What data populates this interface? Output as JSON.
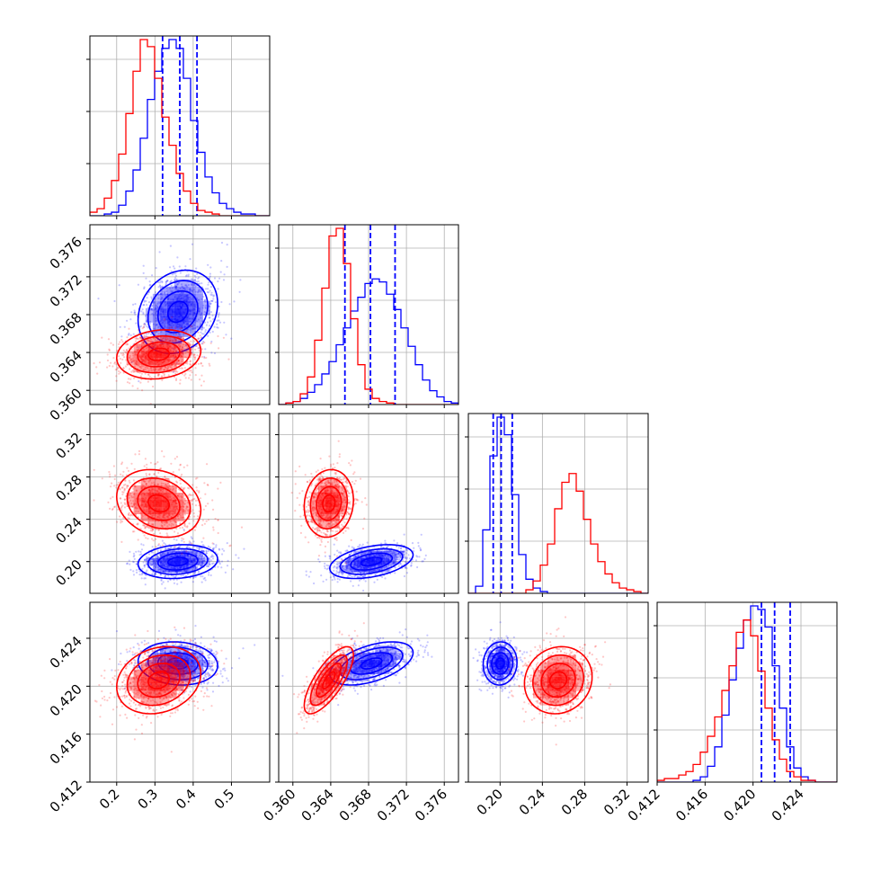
{
  "chart_data": {
    "type": "scatter",
    "kind": "corner",
    "title": "",
    "grid": true,
    "legend": "none",
    "num_params": 4,
    "colors": {
      "red": "#ff0000",
      "blue": "#0000ff"
    },
    "parameters": [
      {
        "index": 0,
        "range": [
          0.13,
          0.6
        ],
        "ticks": [
          0.2,
          0.3,
          0.4,
          0.5
        ],
        "tick_labels": [
          "0.2",
          "0.3",
          "0.4",
          "0.5"
        ]
      },
      {
        "index": 1,
        "range": [
          0.3585,
          0.3775
        ],
        "ticks": [
          0.36,
          0.364,
          0.368,
          0.372,
          0.376
        ],
        "tick_labels": [
          "0.360",
          "0.364",
          "0.368",
          "0.372",
          "0.376"
        ]
      },
      {
        "index": 2,
        "range": [
          0.17,
          0.34
        ],
        "ticks": [
          0.2,
          0.24,
          0.28,
          0.32
        ],
        "tick_labels": [
          "0.20",
          "0.24",
          "0.28",
          "0.32"
        ]
      },
      {
        "index": 3,
        "range": [
          0.412,
          0.427
        ],
        "ticks": [
          0.412,
          0.416,
          0.42,
          0.424
        ],
        "tick_labels": [
          "0.412",
          "0.416",
          "0.420",
          "0.424"
        ]
      }
    ],
    "series": [
      {
        "color": "#0000ff",
        "quantiles": [
          [
            0.32,
            0.365,
            0.41
          ],
          [
            0.3655,
            0.3682,
            0.3708
          ],
          [
            0.1935,
            0.201,
            0.2115
          ],
          [
            0.4207,
            0.4218,
            0.4231
          ]
        ],
        "centers": [
          0.36,
          0.3683,
          0.2,
          0.4219
        ],
        "spreads": [
          0.052,
          0.0022,
          0.008,
          0.0009
        ],
        "correlations": [
          [
            0,
            1,
            0.2
          ],
          [
            0,
            2,
            0.15
          ],
          [
            0,
            3,
            -0.1
          ],
          [
            1,
            2,
            0.4
          ],
          [
            1,
            3,
            0.5
          ],
          [
            2,
            3,
            0.05
          ]
        ],
        "histograms": [
          {
            "edges": [
              0.13,
              0.6
            ],
            "counts": [
              0,
              0,
              1,
              2,
              6,
              14,
              26,
              44,
              66,
              82,
              95,
              100,
              95,
              78,
              54,
              36,
              22,
              13,
              7,
              4,
              2,
              1,
              1,
              0,
              0
            ]
          },
          {
            "edges": [
              0.3585,
              0.3775
            ],
            "counts": [
              0,
              1,
              2,
              4,
              8,
              13,
              20,
              28,
              39,
              50,
              61,
              70,
              79,
              82,
              80,
              72,
              62,
              50,
              38,
              26,
              16,
              9,
              5,
              2,
              1
            ]
          },
          {
            "edges": [
              0.17,
              0.34
            ],
            "counts": [
              0,
              4,
              36,
              78,
              100,
              90,
              56,
              22,
              8,
              3,
              1,
              0,
              0,
              0,
              0,
              0,
              0,
              0,
              0,
              0,
              0,
              0,
              0,
              0,
              0
            ]
          },
          {
            "edges": [
              0.412,
              0.427
            ],
            "counts": [
              0,
              0,
              0,
              0,
              0,
              1,
              3,
              9,
              20,
              38,
              58,
              76,
              92,
              100,
              98,
              88,
              66,
              42,
              20,
              8,
              3,
              1,
              0,
              0,
              0
            ]
          }
        ]
      },
      {
        "color": "#ff0000",
        "centers": [
          0.31,
          0.3638,
          0.255,
          0.4205
        ],
        "spreads": [
          0.055,
          0.0013,
          0.016,
          0.0014
        ],
        "correlations": [
          [
            0,
            1,
            0.15
          ],
          [
            0,
            2,
            -0.2
          ],
          [
            0,
            3,
            0.2
          ],
          [
            1,
            2,
            0.1
          ],
          [
            1,
            3,
            0.75
          ],
          [
            2,
            3,
            0.1
          ]
        ],
        "histograms": [
          {
            "edges": [
              0.13,
              0.6
            ],
            "counts": [
              2,
              4,
              10,
              20,
              35,
              58,
              82,
              100,
              96,
              78,
              56,
              40,
              24,
              14,
              7,
              3,
              2,
              1,
              0,
              0,
              0,
              0,
              0,
              0,
              0
            ]
          },
          {
            "edges": [
              0.3585,
              0.3775
            ],
            "counts": [
              0,
              1,
              2,
              7,
              18,
              42,
              76,
              110,
              115,
              92,
              56,
              26,
              10,
              4,
              2,
              1,
              0,
              0,
              0,
              0,
              0,
              0,
              0,
              0,
              0
            ]
          },
          {
            "edges": [
              0.17,
              0.34
            ],
            "counts": [
              0,
              0,
              0,
              0,
              0,
              0,
              0,
              0,
              2,
              7,
              16,
              28,
              48,
              63,
              68,
              58,
              42,
              28,
              18,
              11,
              6,
              3,
              2,
              1,
              0
            ]
          },
          {
            "edges": [
              0.412,
              0.427
            ],
            "counts": [
              1,
              2,
              2,
              4,
              6,
              10,
              17,
              26,
              37,
              52,
              66,
              85,
              92,
              83,
              63,
              42,
              24,
              13,
              6,
              3,
              1,
              1,
              0,
              0,
              0
            ]
          }
        ]
      }
    ]
  }
}
